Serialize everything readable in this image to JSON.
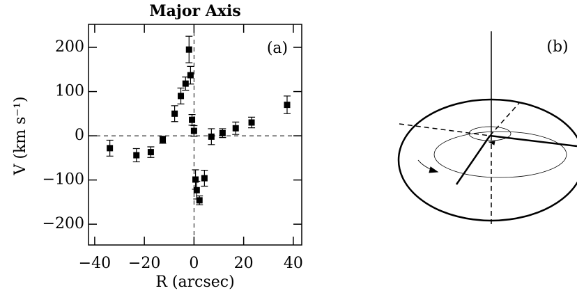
{
  "chart_data": {
    "type": "scatter",
    "title": "Major Axis",
    "annotations": [
      "(a)",
      "(b)"
    ],
    "x_label": "R (arcsec)",
    "y_label": "V (km s⁻¹)",
    "x": [
      -33.9,
      -23.2,
      -17.4,
      -12.6,
      -7.8,
      -5.3,
      -3.4,
      -2,
      -1.4,
      -0.8,
      0,
      0.6,
      1.1,
      2.2,
      4.2,
      7,
      11.5,
      16.8,
      23.2,
      37.5
    ],
    "series": [
      {
        "color": "#000000",
        "values": [
          -28,
          -44,
          -37,
          -9,
          50,
          90,
          118,
          195,
          137,
          36,
          11,
          -99,
          -123,
          -146,
          -96,
          -2,
          6,
          17,
          30,
          70
        ],
        "errors": [
          18,
          15,
          12,
          8,
          18,
          18,
          15,
          30,
          20,
          12,
          12,
          22,
          20,
          10,
          18,
          18,
          10,
          14,
          12,
          20
        ]
      }
    ],
    "xlim": [
      -42.5,
      43.4
    ],
    "ylim": [
      -247,
      252
    ],
    "xticks": [
      {
        "value": -40,
        "label": "−40"
      },
      {
        "value": -20,
        "label": "−20"
      },
      0,
      20,
      40
    ],
    "yticks": [
      {
        "value": -200,
        "label": "−200"
      },
      {
        "value": -100,
        "label": "−100"
      },
      0,
      100,
      200
    ]
  }
}
